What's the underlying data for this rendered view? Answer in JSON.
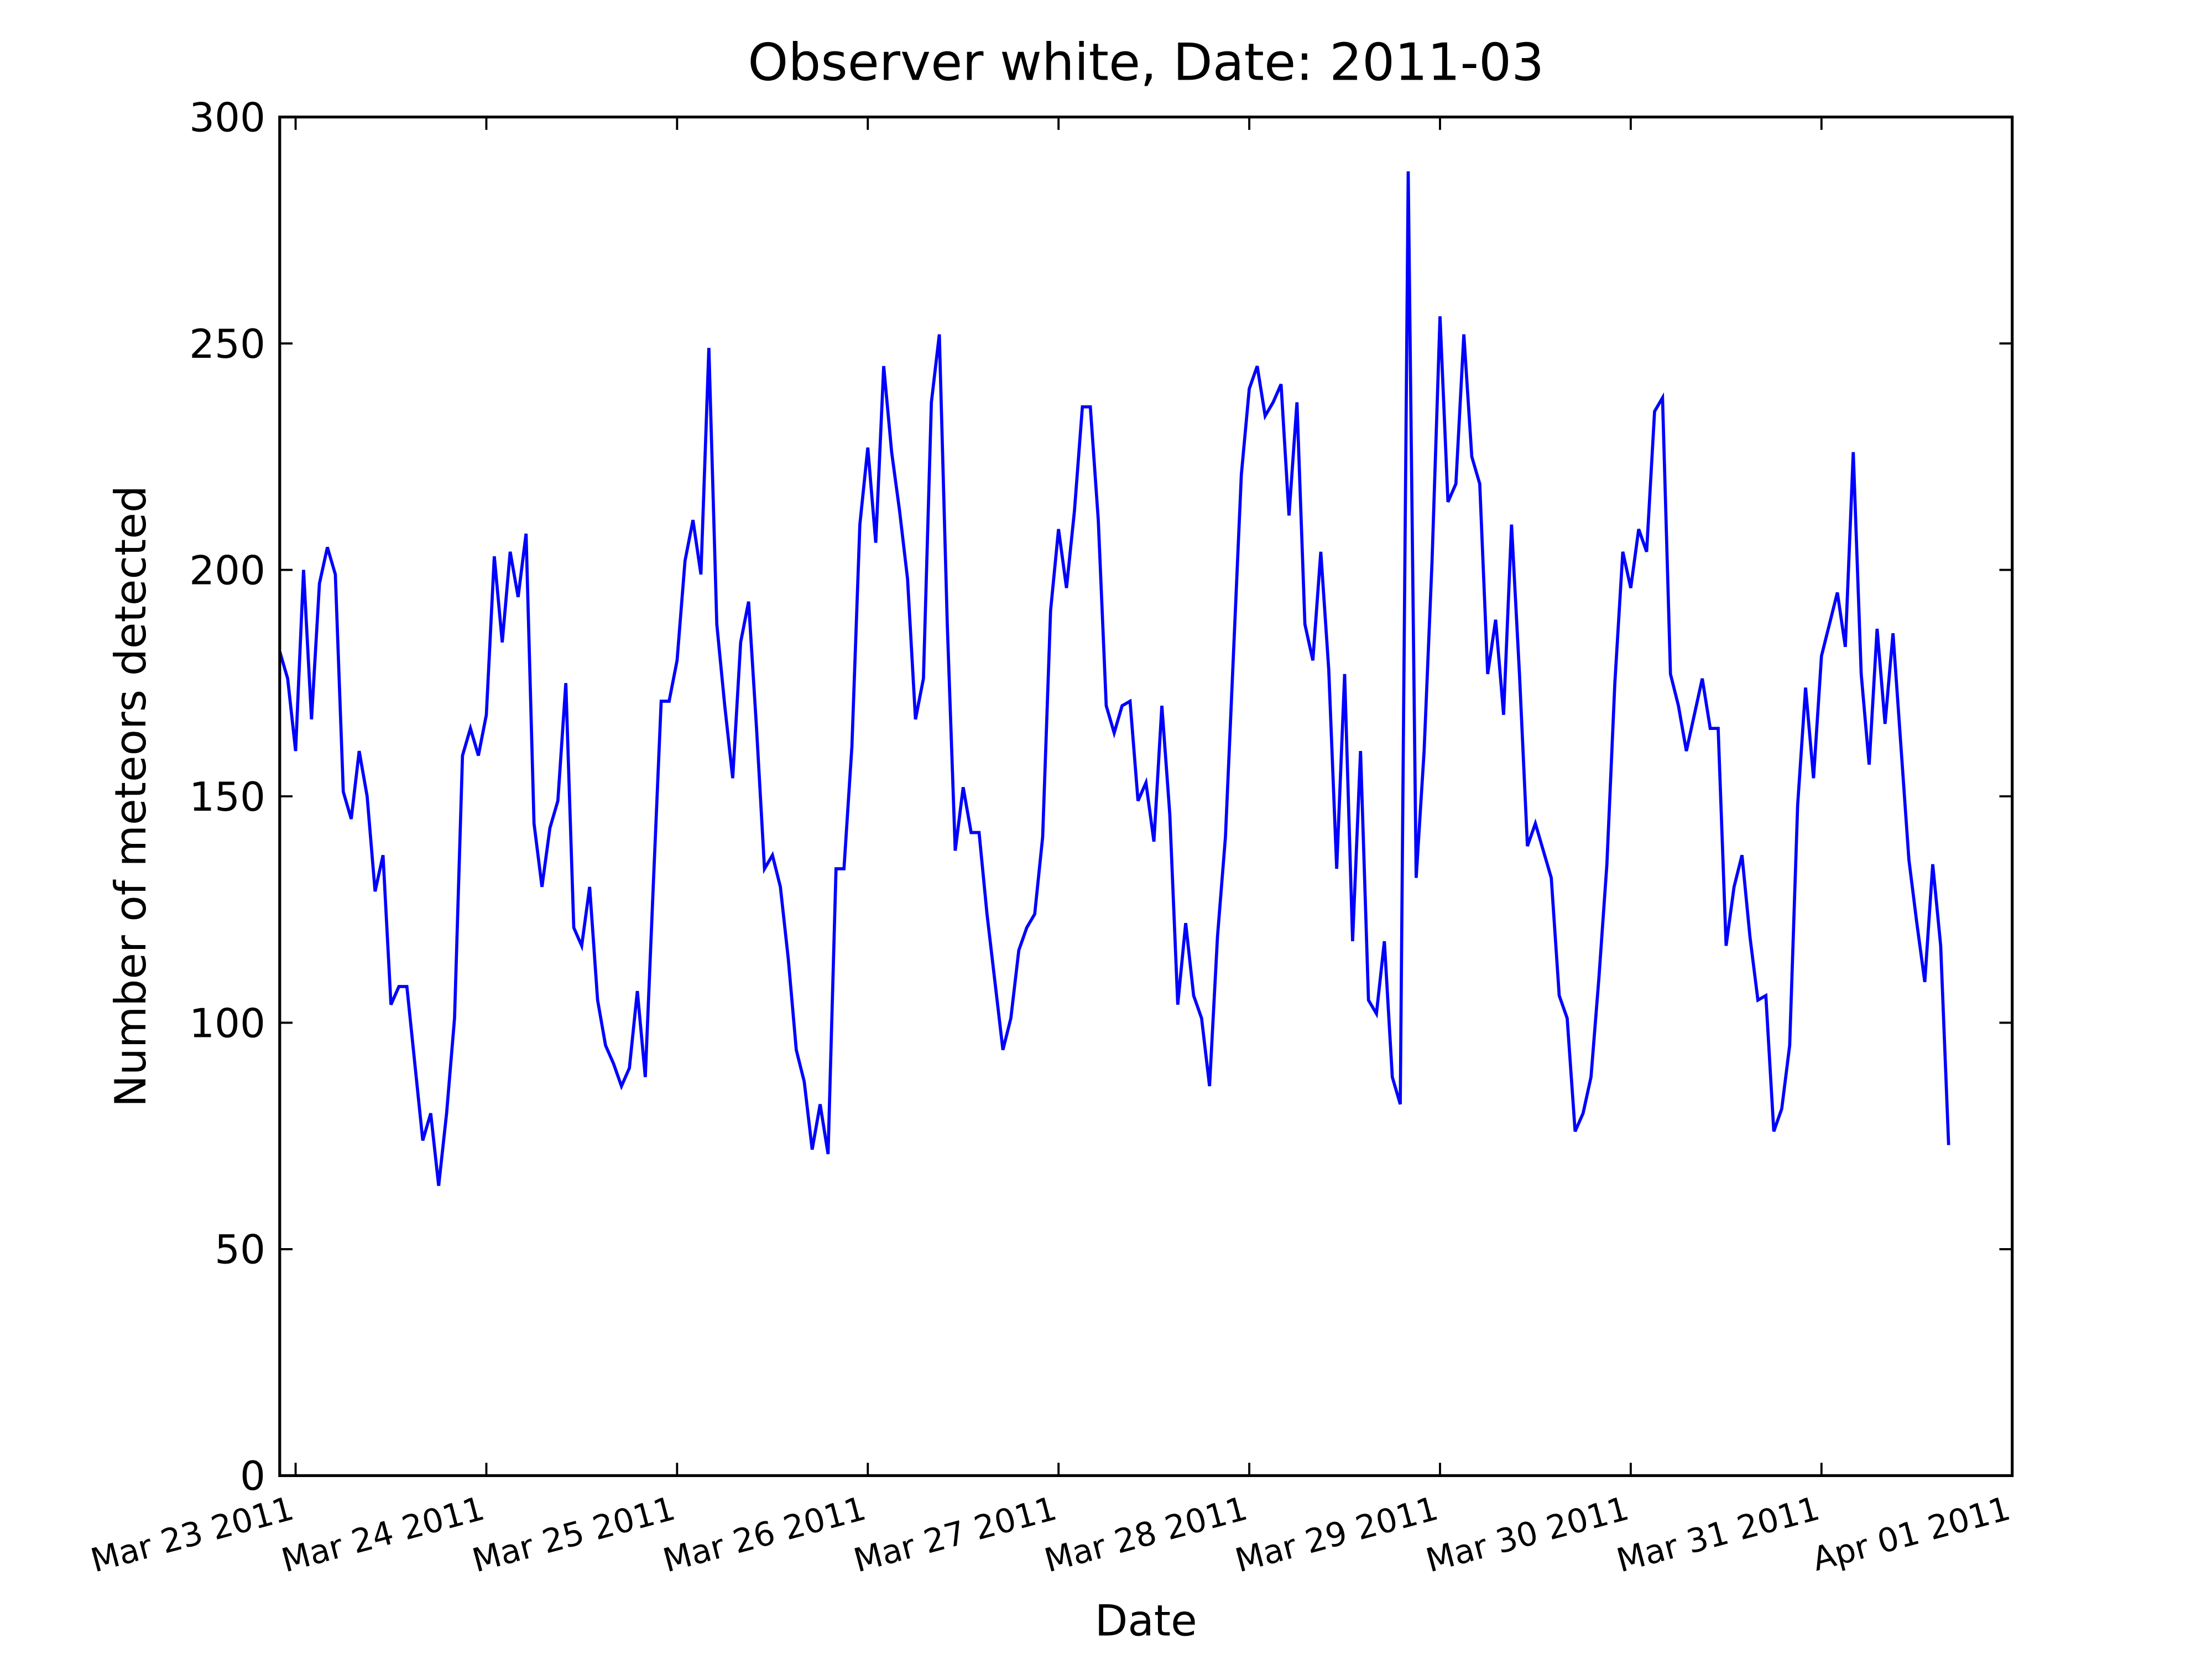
{
  "chart_data": {
    "type": "line",
    "title": "Observer white, Date: 2011-03",
    "x_label": "Date",
    "y_label": "Number of meteors detected",
    "color": "#0000ff",
    "x": [
      "2011-03-22T22:00",
      "2011-03-22T23:00",
      "2011-03-23T00:00",
      "2011-03-23T01:00",
      "2011-03-23T02:00",
      "2011-03-23T03:00",
      "2011-03-23T04:00",
      "2011-03-23T05:00",
      "2011-03-23T06:00",
      "2011-03-23T07:00",
      "2011-03-23T08:00",
      "2011-03-23T09:00",
      "2011-03-23T10:00",
      "2011-03-23T11:00",
      "2011-03-23T12:00",
      "2011-03-23T13:00",
      "2011-03-23T14:00",
      "2011-03-23T15:00",
      "2011-03-23T16:00",
      "2011-03-23T17:00",
      "2011-03-23T18:00",
      "2011-03-23T19:00",
      "2011-03-23T20:00",
      "2011-03-23T21:00",
      "2011-03-23T22:00",
      "2011-03-23T23:00",
      "2011-03-24T00:00",
      "2011-03-24T01:00",
      "2011-03-24T02:00",
      "2011-03-24T03:00",
      "2011-03-24T04:00",
      "2011-03-24T05:00",
      "2011-03-24T06:00",
      "2011-03-24T07:00",
      "2011-03-24T08:00",
      "2011-03-24T09:00",
      "2011-03-24T10:00",
      "2011-03-24T11:00",
      "2011-03-24T12:00",
      "2011-03-24T13:00",
      "2011-03-24T14:00",
      "2011-03-24T15:00",
      "2011-03-24T16:00",
      "2011-03-24T17:00",
      "2011-03-24T18:00",
      "2011-03-24T19:00",
      "2011-03-24T20:00",
      "2011-03-24T21:00",
      "2011-03-24T22:00",
      "2011-03-24T23:00",
      "2011-03-25T00:00",
      "2011-03-25T01:00",
      "2011-03-25T02:00",
      "2011-03-25T03:00",
      "2011-03-25T04:00",
      "2011-03-25T05:00",
      "2011-03-25T06:00",
      "2011-03-25T07:00",
      "2011-03-25T08:00",
      "2011-03-25T09:00",
      "2011-03-25T10:00",
      "2011-03-25T11:00",
      "2011-03-25T12:00",
      "2011-03-25T13:00",
      "2011-03-25T14:00",
      "2011-03-25T15:00",
      "2011-03-25T16:00",
      "2011-03-25T17:00",
      "2011-03-25T18:00",
      "2011-03-25T19:00",
      "2011-03-25T20:00",
      "2011-03-25T21:00",
      "2011-03-25T22:00",
      "2011-03-25T23:00",
      "2011-03-26T00:00",
      "2011-03-26T01:00",
      "2011-03-26T02:00",
      "2011-03-26T03:00",
      "2011-03-26T04:00",
      "2011-03-26T05:00",
      "2011-03-26T06:00",
      "2011-03-26T07:00",
      "2011-03-26T08:00",
      "2011-03-26T09:00",
      "2011-03-26T10:00",
      "2011-03-26T11:00",
      "2011-03-26T12:00",
      "2011-03-26T13:00",
      "2011-03-26T14:00",
      "2011-03-26T15:00",
      "2011-03-26T16:00",
      "2011-03-26T17:00",
      "2011-03-26T18:00",
      "2011-03-26T19:00",
      "2011-03-26T20:00",
      "2011-03-26T21:00",
      "2011-03-26T22:00",
      "2011-03-26T23:00",
      "2011-03-27T00:00",
      "2011-03-27T01:00",
      "2011-03-27T02:00",
      "2011-03-27T03:00",
      "2011-03-27T04:00",
      "2011-03-27T05:00",
      "2011-03-27T06:00",
      "2011-03-27T07:00",
      "2011-03-27T08:00",
      "2011-03-27T09:00",
      "2011-03-27T10:00",
      "2011-03-27T11:00",
      "2011-03-27T12:00",
      "2011-03-27T13:00",
      "2011-03-27T14:00",
      "2011-03-27T15:00",
      "2011-03-27T16:00",
      "2011-03-27T17:00",
      "2011-03-27T18:00",
      "2011-03-27T19:00",
      "2011-03-27T20:00",
      "2011-03-27T21:00",
      "2011-03-27T22:00",
      "2011-03-27T23:00",
      "2011-03-28T00:00",
      "2011-03-28T01:00",
      "2011-03-28T02:00",
      "2011-03-28T03:00",
      "2011-03-28T04:00",
      "2011-03-28T05:00",
      "2011-03-28T06:00",
      "2011-03-28T07:00",
      "2011-03-28T08:00",
      "2011-03-28T09:00",
      "2011-03-28T10:00",
      "2011-03-28T11:00",
      "2011-03-28T12:00",
      "2011-03-28T13:00",
      "2011-03-28T14:00",
      "2011-03-28T15:00",
      "2011-03-28T16:00",
      "2011-03-28T17:00",
      "2011-03-28T18:00",
      "2011-03-28T19:00",
      "2011-03-28T20:00",
      "2011-03-28T21:00",
      "2011-03-28T22:00",
      "2011-03-28T23:00",
      "2011-03-29T00:00",
      "2011-03-29T01:00",
      "2011-03-29T02:00",
      "2011-03-29T03:00",
      "2011-03-29T04:00",
      "2011-03-29T05:00",
      "2011-03-29T06:00",
      "2011-03-29T07:00",
      "2011-03-29T08:00",
      "2011-03-29T09:00",
      "2011-03-29T10:00",
      "2011-03-29T11:00",
      "2011-03-29T12:00",
      "2011-03-29T13:00",
      "2011-03-29T14:00",
      "2011-03-29T15:00",
      "2011-03-29T16:00",
      "2011-03-29T17:00",
      "2011-03-29T18:00",
      "2011-03-29T19:00",
      "2011-03-29T20:00",
      "2011-03-29T21:00",
      "2011-03-29T22:00",
      "2011-03-29T23:00",
      "2011-03-30T00:00",
      "2011-03-30T01:00",
      "2011-03-30T02:00",
      "2011-03-30T03:00",
      "2011-03-30T04:00",
      "2011-03-30T05:00",
      "2011-03-30T06:00",
      "2011-03-30T07:00",
      "2011-03-30T08:00",
      "2011-03-30T09:00",
      "2011-03-30T10:00",
      "2011-03-30T11:00",
      "2011-03-30T12:00",
      "2011-03-30T13:00",
      "2011-03-30T14:00",
      "2011-03-30T15:00",
      "2011-03-30T16:00",
      "2011-03-30T17:00",
      "2011-03-30T18:00",
      "2011-03-30T19:00",
      "2011-03-30T20:00",
      "2011-03-30T21:00",
      "2011-03-30T22:00",
      "2011-03-30T23:00",
      "2011-03-31T00:00",
      "2011-03-31T01:00",
      "2011-03-31T02:00",
      "2011-03-31T03:00",
      "2011-03-31T04:00",
      "2011-03-31T05:00",
      "2011-03-31T06:00",
      "2011-03-31T07:00",
      "2011-03-31T08:00",
      "2011-03-31T09:00",
      "2011-03-31T10:00",
      "2011-03-31T11:00",
      "2011-03-31T12:00",
      "2011-03-31T13:00",
      "2011-03-31T14:00",
      "2011-03-31T15:00",
      "2011-03-31T16:00"
    ],
    "values": [
      182,
      176,
      160,
      200,
      167,
      197,
      205,
      199,
      151,
      145,
      160,
      150,
      129,
      137,
      104,
      108,
      108,
      91,
      74,
      80,
      64,
      80,
      101,
      159,
      165,
      159,
      168,
      203,
      184,
      204,
      194,
      208,
      144,
      130,
      143,
      149,
      175,
      121,
      117,
      130,
      105,
      95,
      91,
      86,
      90,
      107,
      88,
      130,
      171,
      171,
      180,
      202,
      211,
      199,
      249,
      188,
      170,
      154,
      184,
      193,
      165,
      134,
      137,
      130,
      114,
      94,
      87,
      72,
      82,
      71,
      134,
      134,
      161,
      210,
      227,
      206,
      245,
      226,
      213,
      198,
      167,
      176,
      237,
      252,
      188,
      138,
      152,
      142,
      142,
      124,
      109,
      94,
      101,
      116,
      121,
      124,
      141,
      191,
      209,
      196,
      213,
      236,
      236,
      211,
      170,
      164,
      170,
      171,
      149,
      153,
      140,
      170,
      146,
      104,
      122,
      106,
      101,
      86,
      119,
      141,
      181,
      221,
      240,
      245,
      234,
      237,
      241,
      212,
      237,
      188,
      180,
      204,
      178,
      134,
      177,
      118,
      160,
      105,
      102,
      118,
      88,
      82,
      288,
      132,
      160,
      202,
      256,
      215,
      219,
      252,
      225,
      219,
      177,
      189,
      168,
      210,
      177,
      139,
      144,
      138,
      132,
      106,
      101,
      76,
      80,
      88,
      110,
      135,
      175,
      204,
      196,
      209,
      204,
      235,
      238,
      177,
      170,
      160,
      168,
      176,
      165,
      165,
      117,
      130,
      137,
      119,
      105,
      106,
      76,
      81,
      95,
      148,
      174,
      154,
      181,
      188,
      195,
      183,
      226,
      177,
      157,
      187,
      166,
      186,
      161,
      136,
      122,
      109,
      135,
      117,
      73
    ],
    "xlim": [
      "2011-03-22T22:00",
      "2011-04-01T00:00"
    ],
    "xticks": [
      {
        "value": "2011-03-23T00:00",
        "label": "Mar 23 2011"
      },
      {
        "value": "2011-03-24T00:00",
        "label": "Mar 24 2011"
      },
      {
        "value": "2011-03-25T00:00",
        "label": "Mar 25 2011"
      },
      {
        "value": "2011-03-26T00:00",
        "label": "Mar 26 2011"
      },
      {
        "value": "2011-03-27T00:00",
        "label": "Mar 27 2011"
      },
      {
        "value": "2011-03-28T00:00",
        "label": "Mar 28 2011"
      },
      {
        "value": "2011-03-29T00:00",
        "label": "Mar 29 2011"
      },
      {
        "value": "2011-03-30T00:00",
        "label": "Mar 30 2011"
      },
      {
        "value": "2011-03-31T00:00",
        "label": "Mar 31 2011"
      },
      {
        "value": "2011-04-01T00:00",
        "label": "Apr 01 2011"
      }
    ],
    "ylim": [
      0,
      300
    ],
    "yticks": [
      0,
      50,
      100,
      150,
      200,
      250,
      300
    ]
  }
}
